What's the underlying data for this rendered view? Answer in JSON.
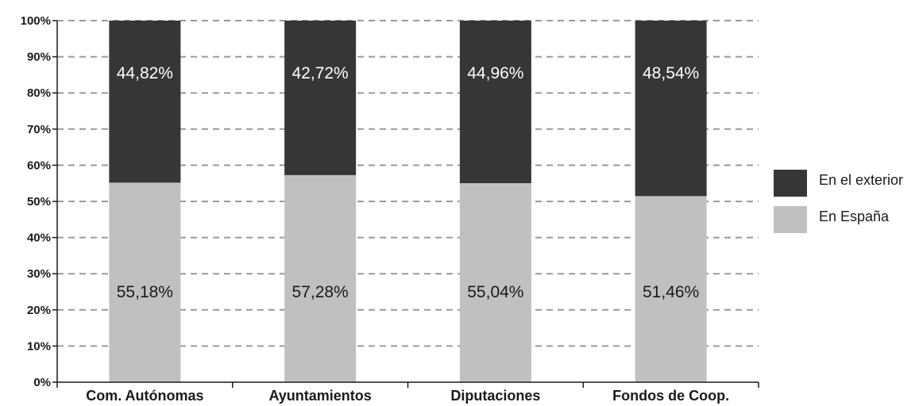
{
  "chart_data": {
    "type": "bar",
    "stacked": true,
    "percent_stacked": true,
    "title": "",
    "xlabel": "",
    "ylabel": "",
    "ylim": [
      0,
      100
    ],
    "y_ticks": [
      "0%",
      "10%",
      "20%",
      "30%",
      "40%",
      "50%",
      "60%",
      "70%",
      "80%",
      "90%",
      "100%"
    ],
    "grid": "horizontal-dashed",
    "legend_position": "right",
    "categories": [
      "Com. Autónomas",
      "Ayuntamientos",
      "Diputaciones",
      "Fondos de Coop."
    ],
    "series": [
      {
        "name": "En España",
        "color": "#c0c0c0",
        "values": [
          55.18,
          57.28,
          55.04,
          51.46
        ],
        "labels": [
          "55,18%",
          "57,28%",
          "55,04%",
          "51,46%"
        ]
      },
      {
        "name": "En el exterior",
        "color": "#363636",
        "values": [
          44.82,
          42.72,
          44.96,
          48.54
        ],
        "labels": [
          "44,82%",
          "42,72%",
          "44,96%",
          "48,54%"
        ]
      }
    ],
    "legend_order": [
      "En el exterior",
      "En España"
    ]
  }
}
